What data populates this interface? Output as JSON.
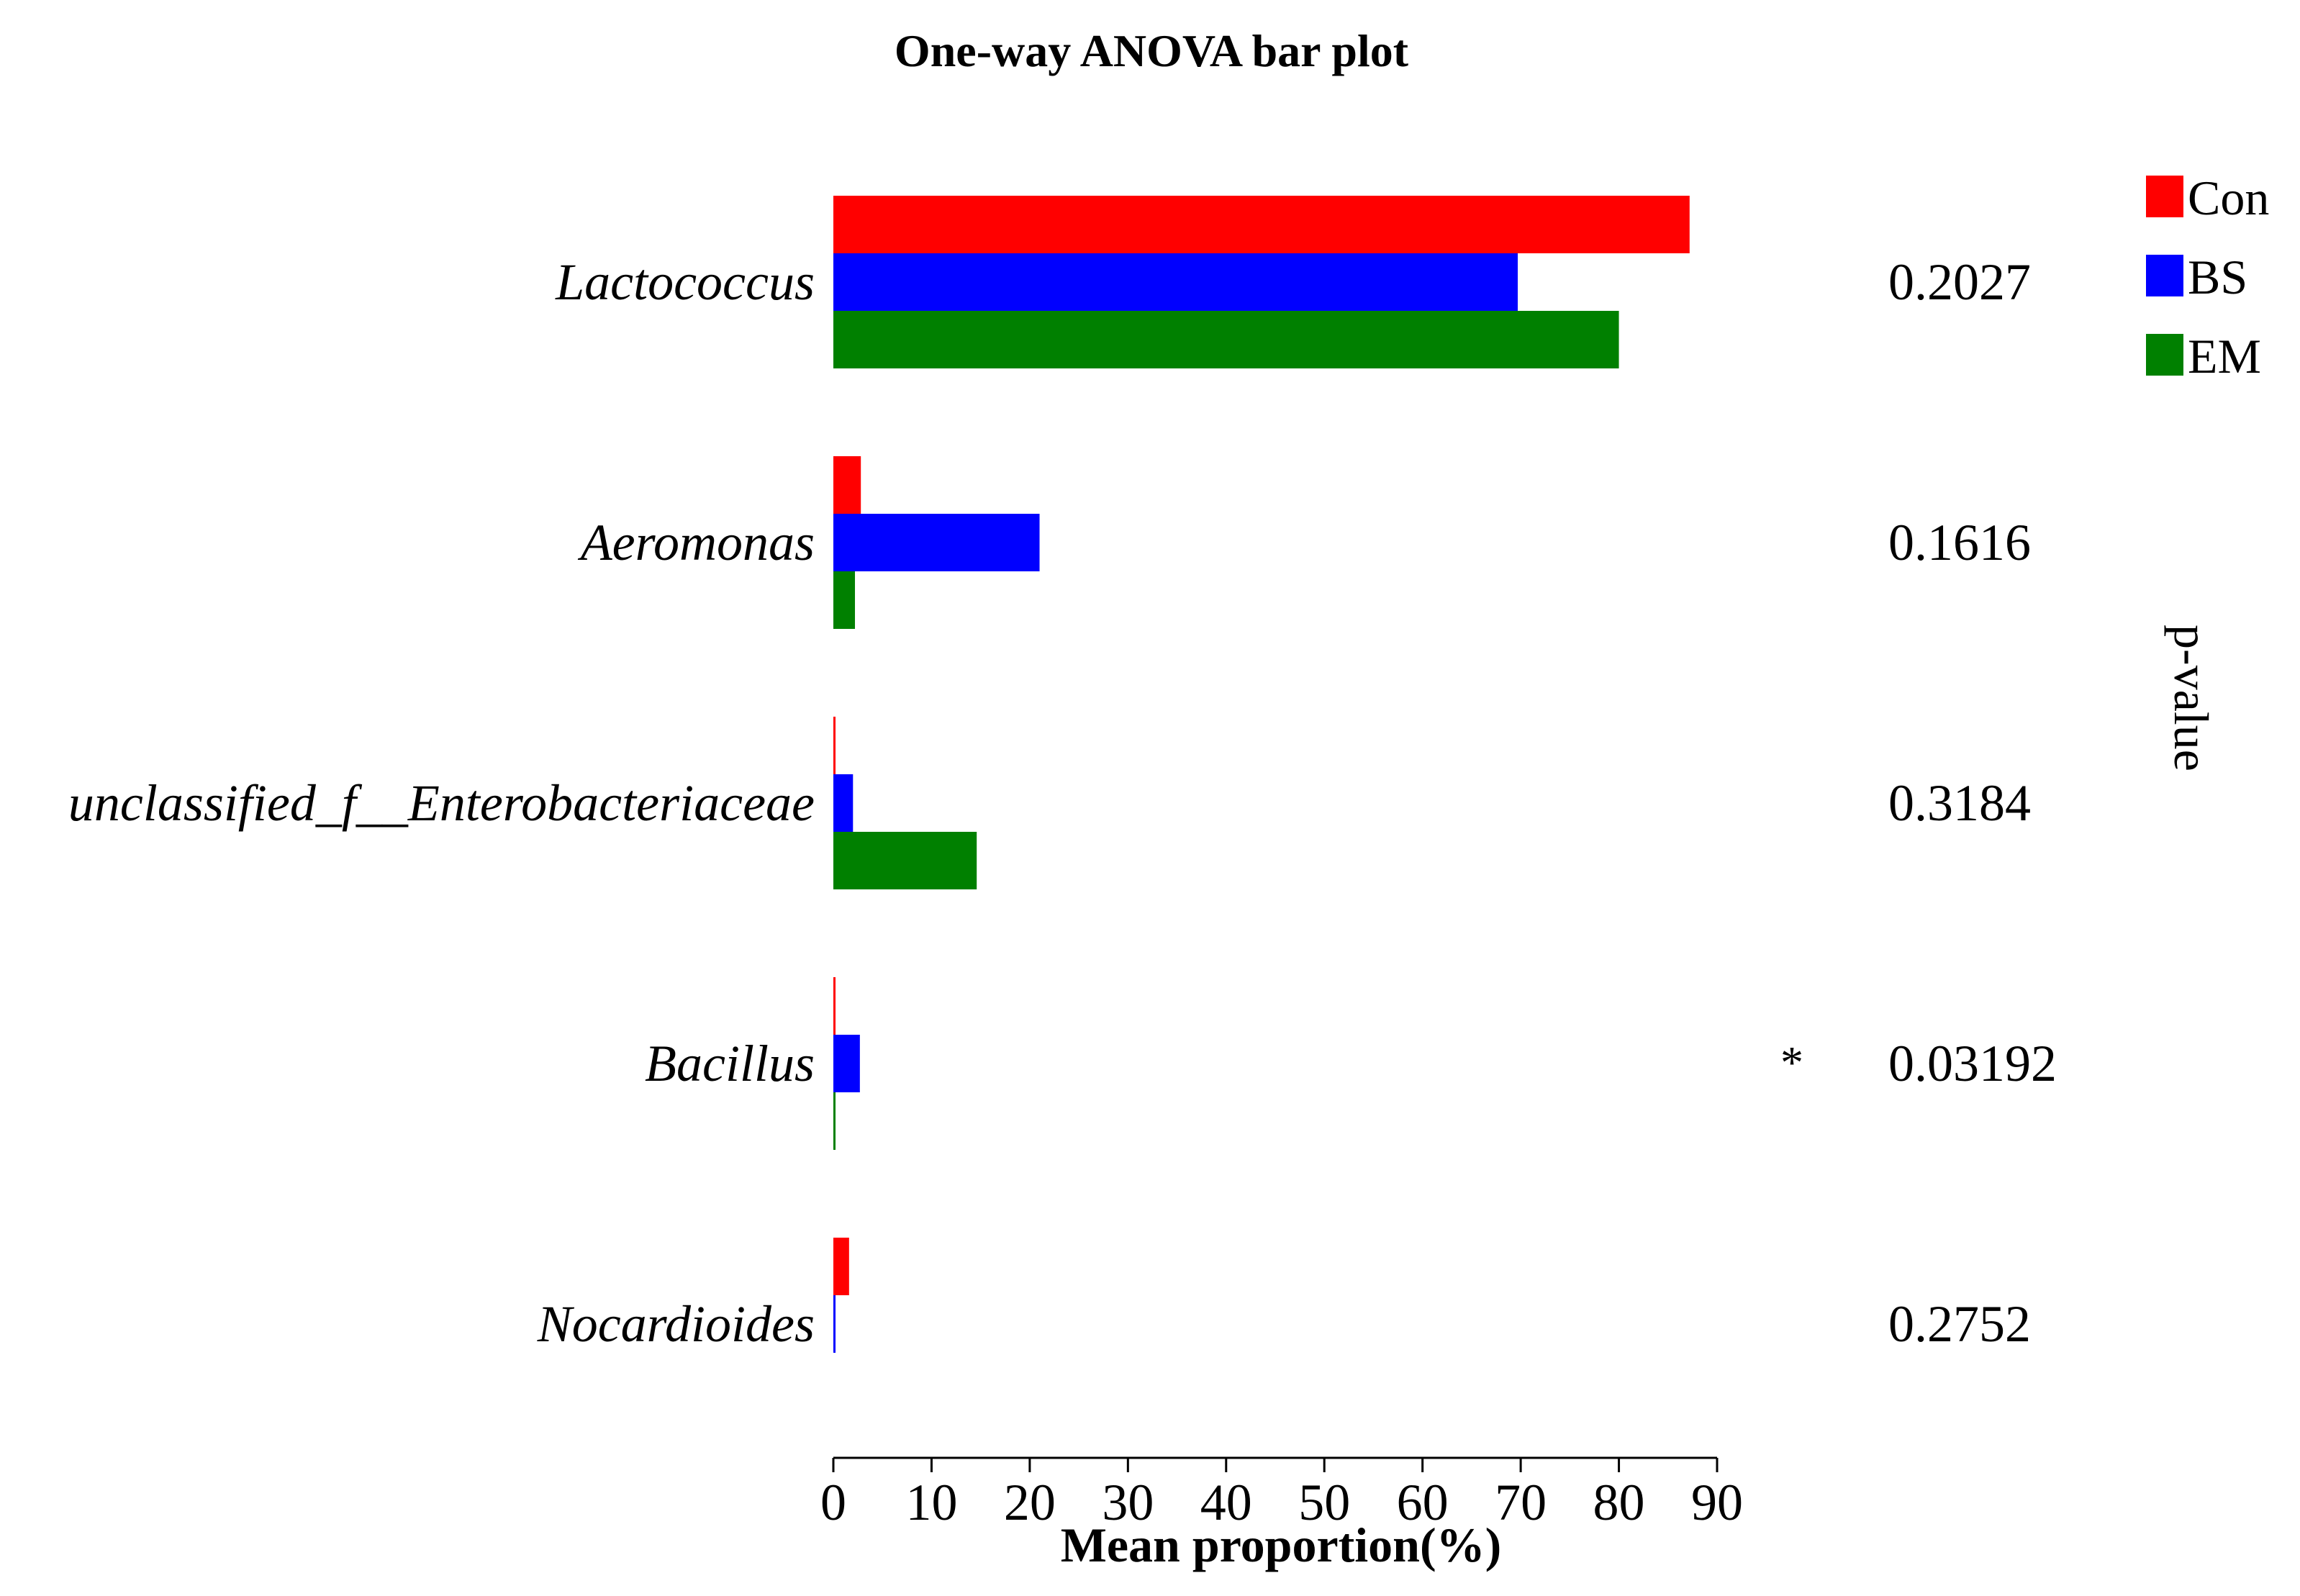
{
  "chart_data": {
    "type": "bar",
    "orientation": "horizontal",
    "title": "One-way ANOVA bar plot",
    "xlabel": "Mean proportion(%)",
    "right_axis_label": "p-value",
    "xlim": [
      0,
      90
    ],
    "xticks": [
      "0",
      "10",
      "20",
      "30",
      "40",
      "50",
      "60",
      "70",
      "80",
      "90"
    ],
    "categories": [
      "Lactococcus",
      "Aeromonas",
      "unclassified_f__Enterobacteriaceae",
      "Bacillus",
      "Nocardioides"
    ],
    "series": [
      {
        "name": "Con",
        "color": "#ff0000",
        "values": [
          87.2,
          2.8,
          0.2,
          0.2,
          1.6
        ]
      },
      {
        "name": "BS",
        "color": "#0000ff",
        "values": [
          69.7,
          21.0,
          2.0,
          2.7,
          0.1
        ]
      },
      {
        "name": "EM",
        "color": "#008000",
        "values": [
          80.0,
          2.2,
          14.6,
          0.2,
          0.0
        ]
      }
    ],
    "p_values": [
      "0.2027",
      "0.1616",
      "0.3184",
      "0.03192",
      "0.2752"
    ],
    "significance": [
      "",
      "",
      "",
      "*",
      ""
    ],
    "legend": [
      "Con",
      "BS",
      "EM"
    ],
    "legend_position": "top-right"
  }
}
